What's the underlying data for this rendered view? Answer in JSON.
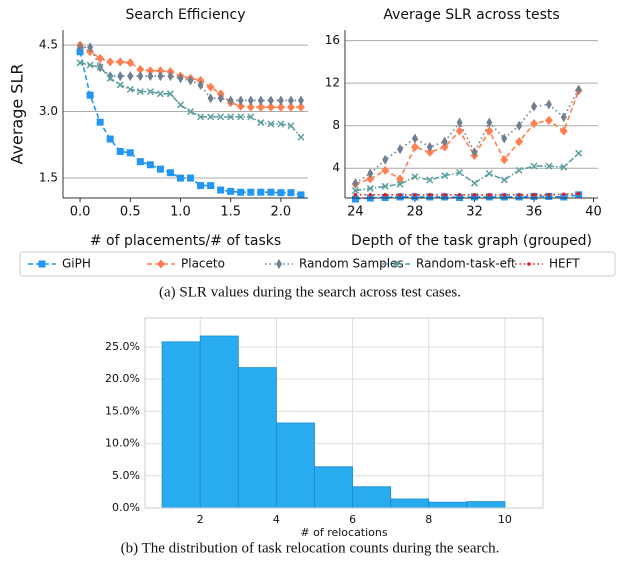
{
  "chart_data": [
    {
      "type": "line",
      "title": "Search Efficiency",
      "xlabel": "# of placements/# of tasks",
      "ylabel": "Average SLR",
      "x": [
        0,
        0.1,
        0.2,
        0.3,
        0.4,
        0.5,
        0.6,
        0.7,
        0.8,
        0.9,
        1.0,
        1.1,
        1.2,
        1.3,
        1.4,
        1.5,
        1.6,
        1.7,
        1.8,
        1.9,
        2.0,
        2.1,
        2.2
      ],
      "xlim": [
        -0.17,
        2.27
      ],
      "xticks": [
        {
          "value": 0,
          "label": "0.0"
        },
        0.5,
        {
          "value": 1,
          "label": "1.0"
        },
        1.5,
        {
          "value": 2,
          "label": "2.0"
        }
      ],
      "ylim": [
        1.05,
        4.84
      ],
      "yticks": [
        1.5,
        {
          "value": 3,
          "label": "3.0"
        },
        4.5
      ],
      "grid": true,
      "series": [
        {
          "name": "GiPH",
          "color": "#2196f3",
          "marker": "square",
          "linestyle": "dashed",
          "values": [
            4.35,
            3.37,
            2.76,
            2.38,
            2.1,
            2.07,
            1.87,
            1.8,
            1.7,
            1.62,
            1.5,
            1.5,
            1.33,
            1.33,
            1.23,
            1.2,
            1.18,
            1.18,
            1.18,
            1.18,
            1.17,
            1.17,
            1.12
          ]
        },
        {
          "name": "Placeto",
          "color": "#ff7f50",
          "marker": "diamond",
          "linestyle": "dashed",
          "values": [
            4.5,
            4.35,
            4.2,
            4.12,
            4.12,
            4.1,
            3.95,
            3.92,
            3.92,
            3.9,
            3.8,
            3.75,
            3.7,
            3.55,
            3.4,
            3.2,
            3.12,
            3.1,
            3.1,
            3.1,
            3.1,
            3.1,
            3.1
          ]
        },
        {
          "name": "Random Samples",
          "color": "#708090",
          "marker": "thin_diamond",
          "linestyle": "dotted",
          "values": [
            4.45,
            4.45,
            4.0,
            3.8,
            3.8,
            3.8,
            3.8,
            3.8,
            3.8,
            3.8,
            3.75,
            3.7,
            3.6,
            3.3,
            3.3,
            3.25,
            3.25,
            3.25,
            3.25,
            3.25,
            3.25,
            3.25,
            3.25
          ]
        },
        {
          "name": "Random-task-eft",
          "color": "#5f9ea0",
          "marker": "x",
          "linestyle": "dashdot",
          "values": [
            4.1,
            4.05,
            4.0,
            3.75,
            3.6,
            3.5,
            3.45,
            3.45,
            3.4,
            3.4,
            3.15,
            3.0,
            2.88,
            2.88,
            2.88,
            2.88,
            2.88,
            2.88,
            2.75,
            2.72,
            2.72,
            2.68,
            2.42
          ]
        }
      ]
    },
    {
      "type": "line",
      "title": "Average SLR across tests",
      "xlabel": "Depth of the task graph (grouped)",
      "x": [
        24,
        25,
        26,
        27,
        28,
        29,
        30,
        31,
        32,
        33,
        34,
        35,
        36,
        37,
        38,
        39
      ],
      "xlim": [
        23.3,
        40.3
      ],
      "xticks": [
        24,
        28,
        32,
        36,
        40
      ],
      "ylim": [
        1.2,
        17
      ],
      "yticks": [
        4,
        8,
        12,
        16
      ],
      "grid": true,
      "legend": "lower center",
      "series": [
        {
          "name": "GiPH",
          "color": "#2196f3",
          "marker": "square",
          "linestyle": "dashed",
          "values": [
            1.1,
            1.2,
            1.25,
            1.3,
            1.3,
            1.3,
            1.3,
            1.25,
            1.3,
            1.3,
            1.3,
            1.3,
            1.35,
            1.35,
            1.3,
            1.5
          ]
        },
        {
          "name": "Placeto",
          "color": "#ff7f50",
          "marker": "diamond",
          "linestyle": "dashed",
          "values": [
            2.5,
            3.0,
            3.8,
            3.0,
            6.0,
            5.5,
            6.0,
            7.5,
            5.2,
            7.5,
            4.8,
            6.5,
            8.2,
            8.5,
            7.5,
            11.3
          ]
        },
        {
          "name": "Random Samples",
          "color": "#708090",
          "marker": "thin_diamond",
          "linestyle": "dotted",
          "values": [
            2.6,
            3.5,
            4.8,
            5.8,
            6.8,
            6.0,
            6.5,
            8.3,
            5.5,
            8.3,
            6.8,
            8.0,
            9.8,
            10.0,
            8.8,
            11.4
          ]
        },
        {
          "name": "Random-task-eft",
          "color": "#5f9ea0",
          "marker": "x",
          "linestyle": "dashdot",
          "values": [
            1.9,
            2.1,
            2.3,
            2.5,
            3.2,
            2.9,
            3.3,
            3.6,
            2.6,
            3.5,
            2.9,
            3.8,
            4.2,
            4.2,
            4.1,
            5.4
          ]
        },
        {
          "name": "HEFT",
          "color": "#e41a1c",
          "marker": "dot",
          "linestyle": "dotted",
          "values": [
            1.5,
            1.5,
            1.5,
            1.5,
            1.5,
            1.5,
            1.5,
            1.5,
            1.5,
            1.5,
            1.5,
            1.5,
            1.5,
            1.5,
            1.55,
            1.6
          ]
        }
      ]
    },
    {
      "type": "histogram",
      "xlabel": "# of relocations",
      "color": "#29abf0",
      "bins": [
        1,
        2,
        3,
        4,
        5,
        6,
        7,
        8,
        9,
        10
      ],
      "values": [
        25.8,
        26.7,
        21.8,
        13.2,
        6.4,
        3.3,
        1.4,
        0.9,
        1.0
      ],
      "xlim": [
        0.55,
        11
      ],
      "xticks": [
        2,
        4,
        6,
        8,
        10
      ],
      "ylim": [
        0,
        29.5
      ],
      "yticks": [
        {
          "value": 0,
          "label": "0.0%"
        },
        {
          "value": 5,
          "label": "5.0%"
        },
        {
          "value": 10,
          "label": "10.0%"
        },
        {
          "value": 15,
          "label": "15.0%"
        },
        {
          "value": 20,
          "label": "20.0%"
        },
        {
          "value": 25,
          "label": "25.0%"
        }
      ],
      "grid": true
    }
  ],
  "captions": [
    "(a) SLR values during the search across test cases.",
    "(b) The distribution of task relocation counts during the search."
  ]
}
